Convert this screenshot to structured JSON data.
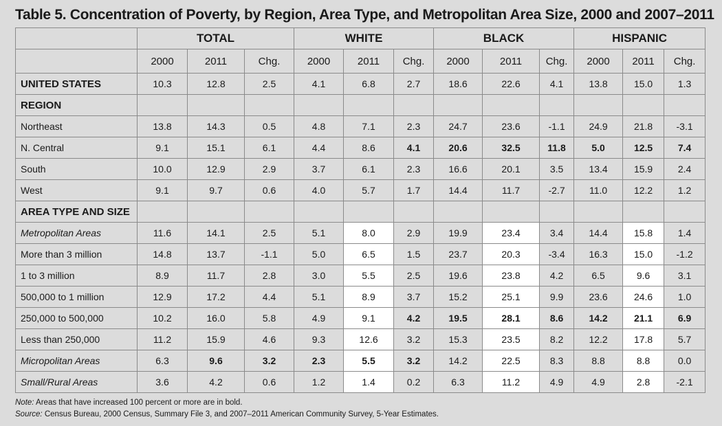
{
  "title": "Table 5. Concentration of Poverty, by Region, Area Type, and Metropolitan Area Size, 2000 and 2007–2011",
  "groups": [
    "TOTAL",
    "WHITE",
    "BLACK",
    "HISPANIC"
  ],
  "year_headers": [
    "2000",
    "2011",
    "Chg.",
    "2000",
    "2011",
    "Chg.",
    "2000",
    "2011",
    "Chg.",
    "2000",
    "2011",
    "Chg."
  ],
  "rows": [
    {
      "label": "UNITED STATES",
      "type": "bold",
      "values": [
        "10.3",
        "12.8",
        "2.5",
        "4.1",
        "6.8",
        "2.7",
        "18.6",
        "22.6",
        "4.1",
        "13.8",
        "15.0",
        "1.3"
      ],
      "bold": [],
      "white": []
    },
    {
      "label": "REGION",
      "type": "section",
      "values": [],
      "bold": [],
      "white": []
    },
    {
      "label": "Northeast",
      "type": "normal",
      "values": [
        "13.8",
        "14.3",
        "0.5",
        "4.8",
        "7.1",
        "2.3",
        "24.7",
        "23.6",
        "-1.1",
        "24.9",
        "21.8",
        "-3.1"
      ],
      "bold": [],
      "white": []
    },
    {
      "label": "N. Central",
      "type": "normal",
      "values": [
        "9.1",
        "15.1",
        "6.1",
        "4.4",
        "8.6",
        "4.1",
        "20.6",
        "32.5",
        "11.8",
        "5.0",
        "12.5",
        "7.4"
      ],
      "bold": [
        5,
        6,
        7,
        8,
        9,
        10,
        11
      ],
      "white": []
    },
    {
      "label": "South",
      "type": "normal",
      "values": [
        "10.0",
        "12.9",
        "2.9",
        "3.7",
        "6.1",
        "2.3",
        "16.6",
        "20.1",
        "3.5",
        "13.4",
        "15.9",
        "2.4"
      ],
      "bold": [],
      "white": []
    },
    {
      "label": "West",
      "type": "normal",
      "values": [
        "9.1",
        "9.7",
        "0.6",
        "4.0",
        "5.7",
        "1.7",
        "14.4",
        "11.7",
        "-2.7",
        "11.0",
        "12.2",
        "1.2"
      ],
      "bold": [],
      "white": []
    },
    {
      "label": "AREA TYPE AND SIZE",
      "type": "section",
      "values": [],
      "bold": [],
      "white": []
    },
    {
      "label": "Metropolitan Areas",
      "type": "italic",
      "values": [
        "11.6",
        "14.1",
        "2.5",
        "5.1",
        "8.0",
        "2.9",
        "19.9",
        "23.4",
        "3.4",
        "14.4",
        "15.8",
        "1.4"
      ],
      "bold": [],
      "white": [
        4,
        7,
        10
      ]
    },
    {
      "label": "More than 3 million",
      "type": "normal",
      "values": [
        "14.8",
        "13.7",
        "-1.1",
        "5.0",
        "6.5",
        "1.5",
        "23.7",
        "20.3",
        "-3.4",
        "16.3",
        "15.0",
        "-1.2"
      ],
      "bold": [],
      "white": [
        4,
        7,
        10
      ]
    },
    {
      "label": "1 to 3 million",
      "type": "normal",
      "values": [
        "8.9",
        "11.7",
        "2.8",
        "3.0",
        "5.5",
        "2.5",
        "19.6",
        "23.8",
        "4.2",
        "6.5",
        "9.6",
        "3.1"
      ],
      "bold": [],
      "white": [
        4,
        7,
        10
      ]
    },
    {
      "label": "500,000 to 1 million",
      "type": "normal",
      "values": [
        "12.9",
        "17.2",
        "4.4",
        "5.1",
        "8.9",
        "3.7",
        "15.2",
        "25.1",
        "9.9",
        "23.6",
        "24.6",
        "1.0"
      ],
      "bold": [],
      "white": [
        4,
        7,
        10
      ]
    },
    {
      "label": "250,000 to 500,000",
      "type": "normal",
      "values": [
        "10.2",
        "16.0",
        "5.8",
        "4.9",
        "9.1",
        "4.2",
        "19.5",
        "28.1",
        "8.6",
        "14.2",
        "21.1",
        "6.9"
      ],
      "bold": [
        5,
        6,
        7,
        8,
        9,
        10,
        11
      ],
      "white": [
        4,
        7,
        10
      ]
    },
    {
      "label": "Less than 250,000",
      "type": "normal",
      "values": [
        "11.2",
        "15.9",
        "4.6",
        "9.3",
        "12.6",
        "3.2",
        "15.3",
        "23.5",
        "8.2",
        "12.2",
        "17.8",
        "5.7"
      ],
      "bold": [],
      "white": [
        4,
        7,
        10
      ]
    },
    {
      "label": "Micropolitan Areas",
      "type": "italic",
      "values": [
        "6.3",
        "9.6",
        "3.2",
        "2.3",
        "5.5",
        "3.2",
        "14.2",
        "22.5",
        "8.3",
        "8.8",
        "8.8",
        "0.0"
      ],
      "bold": [
        1,
        2,
        3,
        4,
        5
      ],
      "white": [
        4,
        7,
        10
      ]
    },
    {
      "label": "Small/Rural Areas",
      "type": "italic",
      "values": [
        "3.6",
        "4.2",
        "0.6",
        "1.2",
        "1.4",
        "0.2",
        "6.3",
        "11.2",
        "4.9",
        "4.9",
        "2.8",
        "-2.1"
      ],
      "bold": [],
      "white": [
        4,
        7,
        10
      ]
    }
  ],
  "note_label": "Note:",
  "note_text": " Areas that have increased 100 percent or more are in bold.",
  "source_label": "Source:",
  "source_text": "  Census Bureau, 2000 Census, Summary File 3, and 2007–2011 American Community Survey, 5-Year Estimates."
}
